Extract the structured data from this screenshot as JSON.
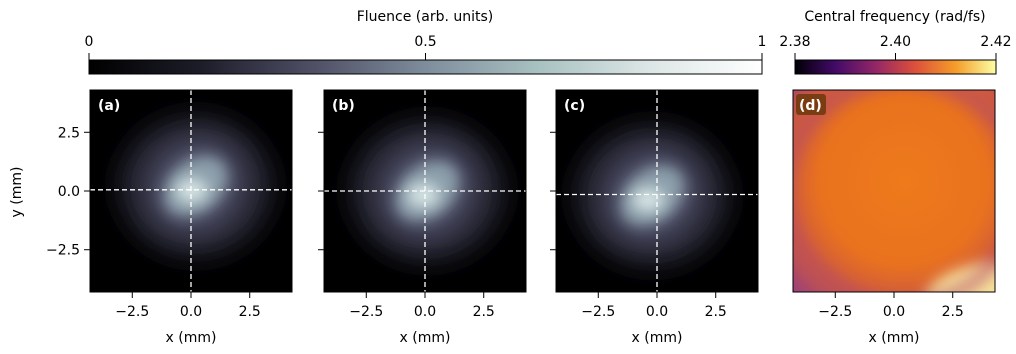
{
  "chart_data": [
    {
      "type": "heatmap",
      "colorbar": {
        "label": "Fluence (arb. units)",
        "ticks": [
          0,
          0.5,
          1
        ],
        "tick_labels": [
          "0",
          "0.5",
          "1"
        ],
        "range": [
          0,
          1
        ],
        "colormap": "bone",
        "colors": [
          "#000000",
          "#1d1d29",
          "#4f4f66",
          "#7e8d9c",
          "#a8c1c1",
          "#dde6e6",
          "#ffffff"
        ]
      },
      "panels": [
        {
          "label": "(a)",
          "center": [
            0.2,
            0.2
          ],
          "crosshair": [
            0.0,
            0.05
          ]
        },
        {
          "label": "(b)",
          "center": [
            0.1,
            0.0
          ],
          "crosshair": [
            0.0,
            0.0
          ]
        },
        {
          "label": "(c)",
          "center": [
            -0.2,
            -0.2
          ],
          "crosshair": [
            0.0,
            -0.15
          ]
        }
      ],
      "xlabel": "x (mm)",
      "ylabel": "y (mm)",
      "xlim": [
        -4.3,
        4.3
      ],
      "ylim": [
        -4.3,
        4.3
      ],
      "xticks": [
        -2.5,
        0.0,
        2.5
      ],
      "xtick_labels": [
        "−2.5",
        "0.0",
        "2.5"
      ],
      "yticks": [
        2.5,
        0.0,
        -2.5
      ],
      "ytick_labels": [
        "2.5",
        "0.0",
        "−2.5"
      ],
      "crosshair_color": "#ffffff"
    },
    {
      "type": "heatmap",
      "panel_label": "(d)",
      "colorbar": {
        "label": "Central frequency (rad/fs)",
        "ticks": [
          2.38,
          2.4,
          2.42
        ],
        "tick_labels": [
          "2.38",
          "2.40",
          "2.42"
        ],
        "range": [
          2.38,
          2.42
        ],
        "colormap": "inferno",
        "colors": [
          "#000004",
          "#420a68",
          "#932667",
          "#dd513a",
          "#f59d2a",
          "#fcffa4"
        ]
      },
      "xlabel": "x (mm)",
      "xlim": [
        -4.3,
        4.3
      ],
      "ylim": [
        -4.3,
        4.3
      ],
      "xticks": [
        -2.5,
        0.0,
        2.5
      ],
      "xtick_labels": [
        "−2.5",
        "0.0",
        "2.5"
      ],
      "base_color": "#e9721e",
      "edge_color": "#a04474",
      "corner_color": "#f7e19a",
      "label_bg": "#7a3d12"
    }
  ]
}
